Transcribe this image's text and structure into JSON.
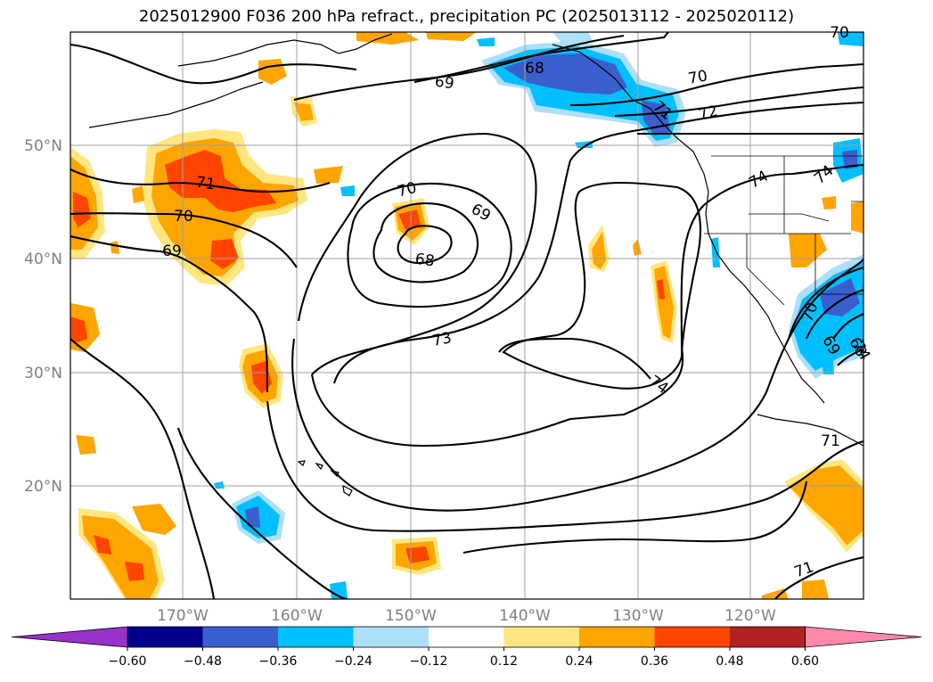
{
  "title": "2025012900 F036 200 hPa refract., precipitation PC (2025013112 - 2025020112)",
  "map": {
    "lon_labels": [
      "170°W",
      "160°W",
      "150°W",
      "140°W",
      "130°W",
      "120°W"
    ],
    "lat_labels": [
      "50°N",
      "40°N",
      "30°N",
      "20°N"
    ],
    "contour_labels": [
      {
        "text": "68"
      },
      {
        "text": "69"
      },
      {
        "text": "70"
      },
      {
        "text": "71"
      },
      {
        "text": "72"
      },
      {
        "text": "74"
      },
      {
        "text": "70"
      },
      {
        "text": "69"
      },
      {
        "text": "68"
      },
      {
        "text": "71"
      },
      {
        "text": "70"
      },
      {
        "text": "69"
      },
      {
        "text": "73"
      },
      {
        "text": "74"
      },
      {
        "text": "74"
      },
      {
        "text": "74"
      },
      {
        "text": "71"
      },
      {
        "text": "71"
      },
      {
        "text": "70"
      },
      {
        "text": "69"
      },
      {
        "text": "68"
      },
      {
        "text": "70"
      },
      {
        "text": "71"
      }
    ]
  },
  "colorbar": {
    "ticks": [
      "−0.60",
      "−0.48",
      "−0.36",
      "−0.24",
      "−0.12",
      "0.12",
      "0.24",
      "0.36",
      "0.48",
      "0.60"
    ],
    "colors": [
      "#9932CC",
      "#00008B",
      "#3A5FCD",
      "#00BFFF",
      "#ADDFF8",
      "#FFFFFF",
      "#FFE680",
      "#FFA500",
      "#FF4500",
      "#B22222",
      "#FF88AA"
    ]
  },
  "colors": {
    "contour": "#000000",
    "grid": "#a0a0a0",
    "orange": "#FFA500",
    "red": "#FF4500",
    "yellow": "#FFE680",
    "cyan": "#00BFFF",
    "lightblue": "#ADDFF8",
    "blue": "#3A5FCD"
  }
}
